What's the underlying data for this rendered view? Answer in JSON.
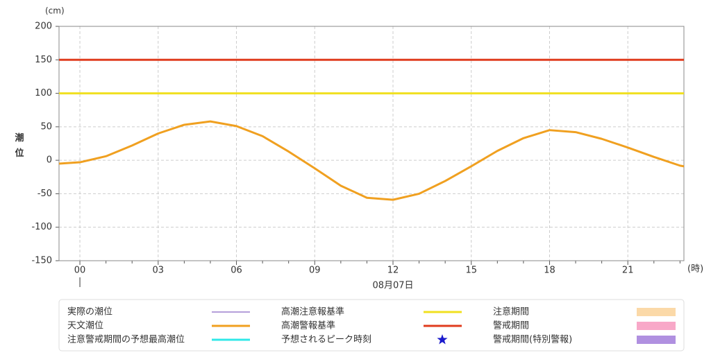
{
  "chart_data": {
    "type": "line",
    "y_unit": "(cm)",
    "x_unit": "(時)",
    "ylabel": "潮位",
    "xlabel": "08月07日",
    "xlim": [
      -0.8,
      23.15
    ],
    "ylim": [
      -150,
      200
    ],
    "yticks": [
      -150,
      -100,
      -50,
      0,
      50,
      100,
      150,
      200
    ],
    "xticks": [
      {
        "value": 0,
        "label": "00"
      },
      {
        "value": 3,
        "label": "03"
      },
      {
        "value": 6,
        "label": "06"
      },
      {
        "value": 9,
        "label": "09"
      },
      {
        "value": 12,
        "label": "12"
      },
      {
        "value": 15,
        "label": "15"
      },
      {
        "value": 18,
        "label": "18"
      },
      {
        "value": 21,
        "label": "21"
      }
    ],
    "minor_xticks": [
      1,
      2,
      4,
      5,
      7,
      8,
      10,
      11,
      13,
      14,
      16,
      17,
      19,
      20,
      22,
      23
    ],
    "grid": true,
    "x": [
      -0.8,
      0,
      1,
      2,
      3,
      4,
      5,
      6,
      7,
      8,
      9,
      10,
      11,
      12,
      13,
      14,
      15,
      16,
      17,
      18,
      19,
      20,
      21,
      22,
      23,
      23.15
    ],
    "series": [
      {
        "name": "実際の潮位",
        "color": "#6a3fb5",
        "values": [
          null,
          null,
          null,
          null,
          null,
          null,
          null,
          null,
          null,
          null,
          null,
          null,
          null,
          null,
          null,
          null,
          null,
          null,
          null,
          null,
          null,
          null,
          null,
          null,
          null,
          null
        ]
      },
      {
        "name": "天文潮位",
        "color": "#f0a020",
        "values": [
          -5,
          -3,
          6,
          22,
          40,
          53,
          58,
          51,
          36,
          13,
          -12,
          -38,
          -56,
          -59,
          -50,
          -31,
          -9,
          14,
          33,
          45,
          42,
          32,
          19,
          5,
          -8,
          -9
        ]
      }
    ],
    "hlines": [
      {
        "name": "高潮注意報基準",
        "color": "#f0e020",
        "value": 100
      },
      {
        "name": "高潮警報基準",
        "color": "#e03c1e",
        "value": 150
      }
    ],
    "legend_extra": [
      {
        "name": "注意警戒期間の予想最高潮位",
        "color": "#30e8e8",
        "marker": "line"
      },
      {
        "name": "予想されるピーク時刻",
        "color": "#1a1acc",
        "marker": "star"
      },
      {
        "name": "注意期間",
        "color": "#fbd9a8",
        "marker": "box"
      },
      {
        "name": "警戒期間",
        "color": "#f8a8c8",
        "marker": "box"
      },
      {
        "name": "警戒期間(特別警報)",
        "color": "#b090e0",
        "marker": "box"
      }
    ]
  }
}
